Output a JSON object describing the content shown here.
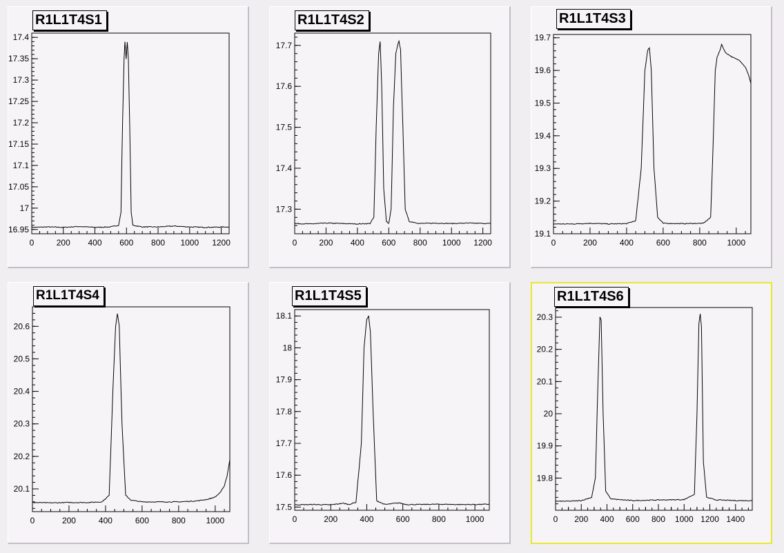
{
  "chart_data": [
    {
      "type": "line",
      "title": "R1L1T4S1",
      "xlim": [
        0,
        1250
      ],
      "ylim": [
        16.94,
        17.41
      ],
      "xticks": [
        0,
        200,
        400,
        600,
        800,
        1000,
        1200
      ],
      "yticks": [
        16.95,
        17,
        17.05,
        17.1,
        17.15,
        17.2,
        17.25,
        17.3,
        17.35,
        17.4
      ],
      "yticklabels": [
        "16.95",
        "17",
        "17.05",
        "17.1",
        "17.15",
        "17.2",
        "17.25",
        "17.3",
        "17.35",
        "17.4"
      ],
      "x": [
        0,
        100,
        200,
        300,
        400,
        500,
        550,
        565,
        575,
        585,
        590,
        598,
        605,
        612,
        620,
        630,
        640,
        700,
        800,
        900,
        1000,
        1100,
        1250
      ],
      "y": [
        16.955,
        16.956,
        16.955,
        16.957,
        16.955,
        16.956,
        16.96,
        16.99,
        17.2,
        17.35,
        17.39,
        17.35,
        17.39,
        17.35,
        17.2,
        16.99,
        16.96,
        16.956,
        16.956,
        16.958,
        16.956,
        16.955,
        16.956
      ]
    },
    {
      "type": "line",
      "title": "R1L1T4S2",
      "xlim": [
        0,
        1250
      ],
      "ylim": [
        17.24,
        17.73
      ],
      "xticks": [
        0,
        200,
        400,
        600,
        800,
        1000,
        1200
      ],
      "yticks": [
        17.3,
        17.4,
        17.5,
        17.6,
        17.7
      ],
      "yticklabels": [
        "17.3",
        "17.4",
        "17.5",
        "17.6",
        "17.7"
      ],
      "x": [
        0,
        100,
        200,
        300,
        400,
        480,
        505,
        520,
        535,
        545,
        555,
        568,
        585,
        600,
        615,
        630,
        645,
        660,
        665,
        675,
        690,
        705,
        730,
        800,
        900,
        1000,
        1100,
        1250
      ],
      "y": [
        17.265,
        17.264,
        17.266,
        17.265,
        17.264,
        17.265,
        17.28,
        17.5,
        17.68,
        17.71,
        17.6,
        17.35,
        17.27,
        17.265,
        17.3,
        17.55,
        17.68,
        17.705,
        17.71,
        17.69,
        17.5,
        17.3,
        17.27,
        17.265,
        17.266,
        17.265,
        17.266,
        17.265
      ]
    },
    {
      "type": "line",
      "title": "R1L1T4S3",
      "xlim": [
        0,
        1080
      ],
      "ylim": [
        19.1,
        19.71
      ],
      "xticks": [
        0,
        200,
        400,
        600,
        800,
        1000
      ],
      "yticks": [
        19.1,
        19.2,
        19.3,
        19.4,
        19.5,
        19.6,
        19.7
      ],
      "yticklabels": [
        "19.1",
        "19.2",
        "19.3",
        "19.4",
        "19.5",
        "19.6",
        "19.7"
      ],
      "x": [
        0,
        100,
        200,
        300,
        400,
        450,
        480,
        500,
        515,
        525,
        535,
        550,
        570,
        600,
        700,
        820,
        860,
        875,
        885,
        895,
        910,
        920,
        940,
        980,
        1020,
        1050,
        1065,
        1080
      ],
      "y": [
        19.13,
        19.13,
        19.132,
        19.13,
        19.131,
        19.14,
        19.3,
        19.6,
        19.66,
        19.67,
        19.6,
        19.3,
        19.15,
        19.132,
        19.131,
        19.132,
        19.15,
        19.4,
        19.6,
        19.64,
        19.66,
        19.68,
        19.655,
        19.64,
        19.63,
        19.61,
        19.59,
        19.56
      ]
    },
    {
      "type": "line",
      "title": "R1L1T4S4",
      "xlim": [
        0,
        1080
      ],
      "ylim": [
        20.03,
        20.66
      ],
      "xticks": [
        0,
        200,
        400,
        600,
        800,
        1000
      ],
      "yticks": [
        20.1,
        20.2,
        20.3,
        20.4,
        20.5,
        20.6
      ],
      "yticklabels": [
        "20.1",
        "20.2",
        "20.3",
        "20.4",
        "20.5",
        "20.6"
      ],
      "x": [
        0,
        100,
        200,
        300,
        380,
        420,
        440,
        455,
        465,
        475,
        490,
        510,
        540,
        600,
        700,
        800,
        900,
        960,
        1000,
        1030,
        1050,
        1065,
        1080
      ],
      "y": [
        20.058,
        20.057,
        20.058,
        20.058,
        20.06,
        20.08,
        20.4,
        20.6,
        20.64,
        20.6,
        20.3,
        20.08,
        20.065,
        20.06,
        20.06,
        20.06,
        20.063,
        20.068,
        20.075,
        20.09,
        20.11,
        20.14,
        20.19
      ]
    },
    {
      "type": "line",
      "title": "R1L1T4S5",
      "xlim": [
        0,
        1080
      ],
      "ylim": [
        17.49,
        18.12
      ],
      "xticks": [
        0,
        200,
        400,
        600,
        800,
        1000
      ],
      "yticks": [
        17.5,
        17.6,
        17.7,
        17.8,
        17.9,
        18,
        18.1
      ],
      "yticklabels": [
        "17.5",
        "17.6",
        "17.7",
        "17.8",
        "17.9",
        "18",
        "18.1"
      ],
      "x": [
        0,
        100,
        200,
        270,
        300,
        340,
        370,
        385,
        400,
        410,
        420,
        435,
        455,
        500,
        560,
        580,
        620,
        700,
        800,
        900,
        1000,
        1080
      ],
      "y": [
        17.507,
        17.508,
        17.507,
        17.512,
        17.508,
        17.515,
        17.7,
        18.0,
        18.09,
        18.1,
        18.05,
        17.8,
        17.52,
        17.508,
        17.512,
        17.513,
        17.508,
        17.508,
        17.509,
        17.508,
        17.508,
        17.509
      ]
    },
    {
      "type": "line",
      "title": "R1L1T4S6",
      "xlim": [
        0,
        1530
      ],
      "ylim": [
        19.7,
        20.33
      ],
      "xticks": [
        0,
        100,
        200,
        300,
        400,
        500,
        600,
        700,
        800,
        900,
        1000,
        1100,
        1200,
        1300,
        1400
      ],
      "xticklabels": [
        "0",
        "200",
        "400",
        "600",
        "800",
        "1000",
        "1200",
        "1400"
      ],
      "xtickvalues_labeled": [
        0,
        200,
        400,
        600,
        800,
        1000,
        1200,
        1400
      ],
      "yticks": [
        19.8,
        19.9,
        20,
        20.1,
        20.2,
        20.3
      ],
      "yticklabels": [
        "19.8",
        "19.9",
        "20",
        "20.1",
        "20.2",
        "20.3"
      ],
      "x": [
        0,
        100,
        200,
        280,
        310,
        330,
        345,
        355,
        370,
        390,
        430,
        600,
        800,
        1000,
        1080,
        1100,
        1115,
        1125,
        1135,
        1150,
        1175,
        1250,
        1400,
        1530
      ],
      "y": [
        19.728,
        19.728,
        19.73,
        19.74,
        19.8,
        20.1,
        20.3,
        20.29,
        20.0,
        19.76,
        19.735,
        19.73,
        19.732,
        19.733,
        19.75,
        20.0,
        20.28,
        20.31,
        20.27,
        19.85,
        19.74,
        19.732,
        19.73,
        19.73
      ]
    }
  ]
}
